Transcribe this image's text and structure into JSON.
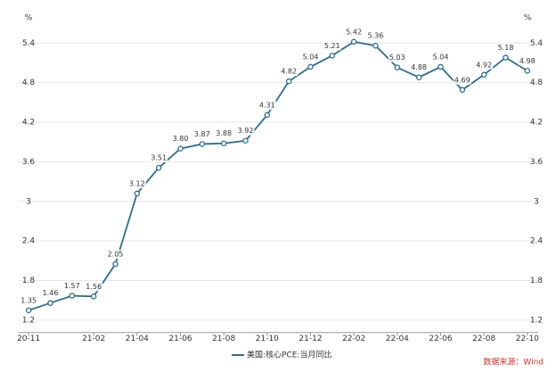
{
  "chart_data": {
    "type": "line",
    "y_unit": "%",
    "categories": [
      "20-11",
      null,
      null,
      "21-02",
      null,
      "21-04",
      null,
      "21-06",
      null,
      "21-08",
      null,
      "21-10",
      null,
      "21-12",
      null,
      "22-02",
      null,
      "22-04",
      null,
      "22-06",
      null,
      "22-08",
      null,
      "22-10"
    ],
    "series": [
      {
        "name": "美国:核心PCE:当月同比",
        "color": "#2b6f8e",
        "values": [
          1.35,
          1.46,
          1.57,
          1.56,
          2.05,
          3.12,
          3.51,
          3.8,
          3.87,
          3.88,
          3.92,
          4.31,
          4.82,
          5.04,
          5.21,
          5.42,
          5.36,
          5.03,
          4.88,
          5.04,
          4.69,
          4.92,
          5.18,
          4.98
        ],
        "value_labels": [
          "1.35",
          "1.46",
          "1.57",
          "1.56",
          "2.05",
          "3.12",
          "3.51",
          "3.80",
          "3.87",
          "3.88",
          "3.92",
          "4.31",
          "4.82",
          "5.04",
          "5.21",
          "5.42",
          "5.36",
          "5.03",
          "4.88",
          "5.04",
          "4.69",
          "4.92",
          "5.18",
          "4.98"
        ]
      }
    ],
    "ylim": [
      1.0,
      5.8
    ],
    "yticks": [
      1.2,
      1.8,
      2.4,
      3,
      3.6,
      4.2,
      4.8,
      5.4
    ],
    "grid": true,
    "source": "数据来源：Wind"
  }
}
